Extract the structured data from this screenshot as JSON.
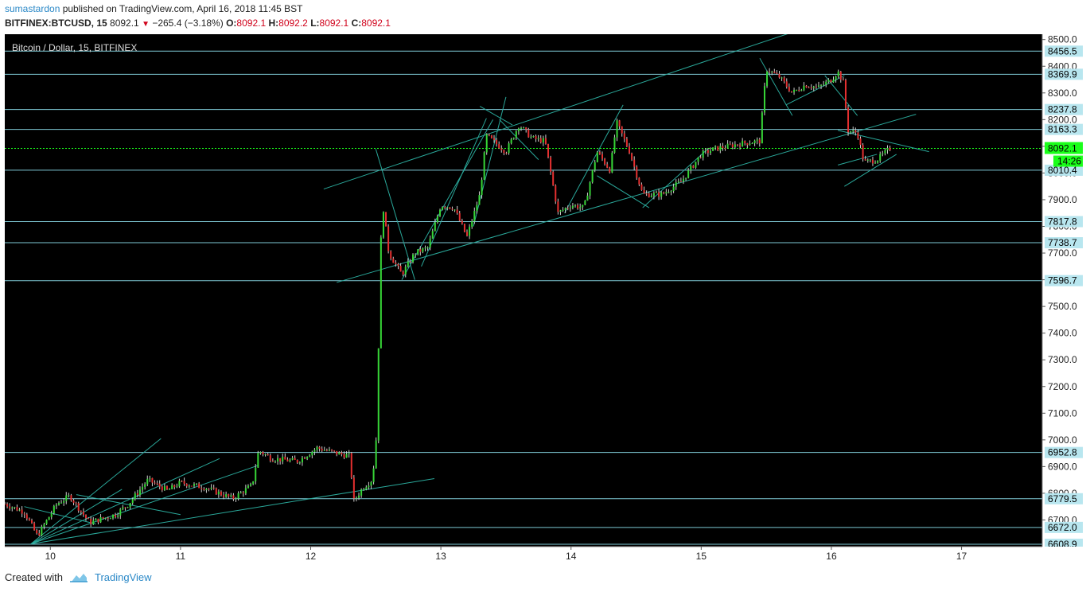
{
  "header": {
    "author": "sumastardon",
    "published_text": " published on TradingView.com, April 16, 2018 11:45 BST",
    "symbol": "BITFINEX:BTCUSD, 15",
    "last": "8092.1",
    "change": "−265.4 (−3.18%)",
    "o_label": "O:",
    "o": "8092.1",
    "h_label": "H:",
    "h": "8092.2",
    "l_label": "L:",
    "l": "8092.1",
    "c_label": "C:",
    "c": "8092.1"
  },
  "footer": {
    "created_with": "Created with",
    "brand": "TradingView"
  },
  "colors": {
    "background": "#000000",
    "level_line": "#7ec8d4",
    "trend_line": "#2aa89a",
    "current_price_line": "#1aff1a",
    "up_candle": "#37d637",
    "down_candle": "#e53030",
    "label_bg": "#b8e6ef",
    "current_label_bg": "#1aff1a"
  },
  "chart_data": {
    "type": "candlestick",
    "title": "Bitcoin / Dollar, 15, BITFINEX",
    "ylim": [
      6600,
      8520
    ],
    "y_ticks": [
      6700,
      6800,
      6900,
      7000,
      7100,
      7200,
      7300,
      7400,
      7500,
      7600,
      7700,
      7800,
      7900,
      8000,
      8100,
      8200,
      8300,
      8400,
      8500
    ],
    "y_tick_labels": [
      "6700.0",
      "6800.0",
      "6900.0",
      "7000.0",
      "7100.0",
      "7200.0",
      "7300.0",
      "7400.0",
      "7500.0",
      "7600.0",
      "7700.0",
      "7800.0",
      "7900.0",
      "8000.0",
      "8100.0",
      "8200.0",
      "8300.0",
      "8400.0",
      "8500.0"
    ],
    "x_ticks": [
      10,
      11,
      12,
      13,
      14,
      15,
      16,
      17
    ],
    "x_tick_labels": [
      "10",
      "11",
      "12",
      "13",
      "14",
      "15",
      "16",
      "17"
    ],
    "xlim": [
      9.65,
      17.95
    ],
    "horizontal_levels": [
      8456.5,
      8369.9,
      8237.8,
      8163.3,
      8010.4,
      7817.8,
      7738.7,
      7596.7,
      6952.8,
      6779.5,
      6672.0,
      6608.9
    ],
    "level_labels": [
      "8456.5",
      "8369.9",
      "8237.8",
      "8163.3",
      "8010.4",
      "7817.8",
      "7738.7",
      "7596.7",
      "6952.8",
      "6779.5",
      "6672.0",
      "6608.9"
    ],
    "current_price": 8092.1,
    "current_price_label": "8092.1",
    "countdown_label": "14:26",
    "trend_lines": [
      [
        [
          9.85,
          6610
        ],
        [
          10.85,
          7005
        ]
      ],
      [
        [
          9.85,
          6610
        ],
        [
          12.95,
          6855
        ]
      ],
      [
        [
          9.85,
          6610
        ],
        [
          11.6,
          6905
        ]
      ],
      [
        [
          9.85,
          6610
        ],
        [
          11.3,
          6930
        ]
      ],
      [
        [
          9.85,
          6610
        ],
        [
          10.55,
          6815
        ]
      ],
      [
        [
          10.2,
          6795
        ],
        [
          11.0,
          6720
        ]
      ],
      [
        [
          9.8,
          6750
        ],
        [
          10.35,
          6685
        ]
      ],
      [
        [
          12.5,
          8090
        ],
        [
          12.8,
          7600
        ]
      ],
      [
        [
          12.1,
          7940
        ],
        [
          15.9,
          8560
        ]
      ],
      [
        [
          12.7,
          7600
        ],
        [
          13.4,
          8200
        ]
      ],
      [
        [
          12.85,
          7650
        ],
        [
          13.35,
          8205
        ]
      ],
      [
        [
          13.25,
          7800
        ],
        [
          13.5,
          8285
        ]
      ],
      [
        [
          13.3,
          8250
        ],
        [
          13.55,
          8180
        ]
      ],
      [
        [
          13.45,
          8200
        ],
        [
          13.75,
          8050
        ]
      ],
      [
        [
          12.2,
          7590
        ],
        [
          16.65,
          8220
        ]
      ],
      [
        [
          13.95,
          7850
        ],
        [
          14.4,
          8255
        ]
      ],
      [
        [
          14.2,
          7990
        ],
        [
          14.6,
          7870
        ]
      ],
      [
        [
          14.55,
          7870
        ],
        [
          15.05,
          8090
        ]
      ],
      [
        [
          15.45,
          8430
        ],
        [
          15.7,
          8215
        ]
      ],
      [
        [
          15.65,
          8255
        ],
        [
          16.1,
          8365
        ]
      ],
      [
        [
          15.95,
          8365
        ],
        [
          16.2,
          8215
        ]
      ],
      [
        [
          16.1,
          7950
        ],
        [
          16.5,
          8070
        ]
      ],
      [
        [
          16.05,
          8160
        ],
        [
          16.75,
          8080
        ]
      ],
      [
        [
          16.05,
          8030
        ],
        [
          16.35,
          8070
        ]
      ]
    ],
    "price_path": [
      [
        9.65,
        6760
      ],
      [
        9.8,
        6730
      ],
      [
        9.9,
        6640
      ],
      [
        10.05,
        6760
      ],
      [
        10.15,
        6790
      ],
      [
        10.3,
        6690
      ],
      [
        10.5,
        6720
      ],
      [
        10.6,
        6760
      ],
      [
        10.75,
        6850
      ],
      [
        10.9,
        6810
      ],
      [
        11.0,
        6840
      ],
      [
        11.2,
        6820
      ],
      [
        11.4,
        6780
      ],
      [
        11.55,
        6830
      ],
      [
        11.6,
        6960
      ],
      [
        11.7,
        6930
      ],
      [
        11.9,
        6920
      ],
      [
        12.05,
        6970
      ],
      [
        12.2,
        6950
      ],
      [
        12.3,
        6940
      ],
      [
        12.33,
        6770
      ],
      [
        12.4,
        6820
      ],
      [
        12.47,
        6850
      ],
      [
        12.5,
        6960
      ],
      [
        12.52,
        7320
      ],
      [
        12.53,
        7600
      ],
      [
        12.55,
        7900
      ],
      [
        12.6,
        7700
      ],
      [
        12.7,
        7620
      ],
      [
        12.8,
        7700
      ],
      [
        12.9,
        7720
      ],
      [
        13.0,
        7880
      ],
      [
        13.1,
        7870
      ],
      [
        13.2,
        7760
      ],
      [
        13.3,
        7920
      ],
      [
        13.35,
        8140
      ],
      [
        13.5,
        8080
      ],
      [
        13.6,
        8180
      ],
      [
        13.7,
        8130
      ],
      [
        13.8,
        8120
      ],
      [
        13.9,
        7850
      ],
      [
        14.0,
        7880
      ],
      [
        14.1,
        7870
      ],
      [
        14.2,
        8080
      ],
      [
        14.3,
        8010
      ],
      [
        14.35,
        8190
      ],
      [
        14.45,
        8080
      ],
      [
        14.55,
        7920
      ],
      [
        14.7,
        7920
      ],
      [
        14.85,
        7970
      ],
      [
        15.0,
        8070
      ],
      [
        15.1,
        8090
      ],
      [
        15.3,
        8110
      ],
      [
        15.45,
        8120
      ],
      [
        15.5,
        8390
      ],
      [
        15.6,
        8360
      ],
      [
        15.7,
        8300
      ],
      [
        15.8,
        8330
      ],
      [
        15.9,
        8320
      ],
      [
        16.0,
        8350
      ],
      [
        16.05,
        8380
      ],
      [
        16.1,
        8330
      ],
      [
        16.12,
        8160
      ],
      [
        16.2,
        8150
      ],
      [
        16.25,
        8040
      ],
      [
        16.35,
        8050
      ],
      [
        16.45,
        8092.1
      ]
    ]
  }
}
